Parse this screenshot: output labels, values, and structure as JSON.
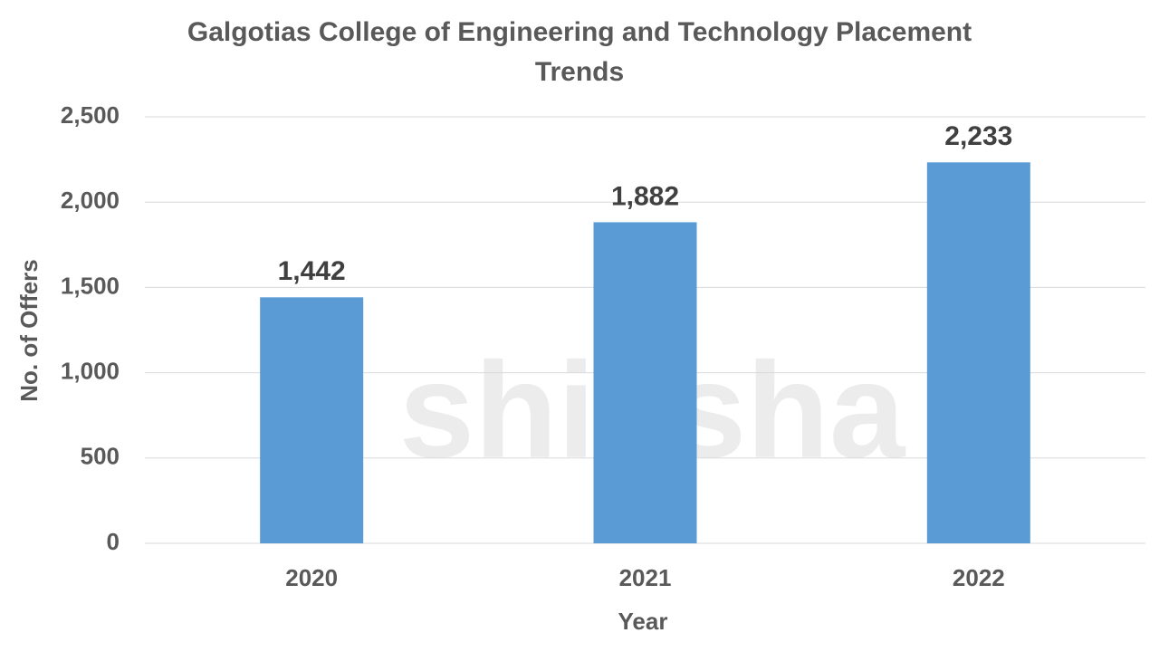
{
  "chart_data": {
    "type": "bar",
    "title": "Galgotias College of Engineering and Technology Placement Trends",
    "watermark": "shiksha",
    "x_label": "Year",
    "y_label": "No. of Offers",
    "categories": [
      "2020",
      "2021",
      "2022"
    ],
    "values": [
      1442,
      1882,
      2233
    ],
    "value_labels": [
      "1,442",
      "1,882",
      "2,233"
    ],
    "color": "#5b9bd5",
    "ylim": [
      0,
      2500
    ],
    "yticks": [
      0,
      500,
      {
        "value": 1000,
        "label": "1,000"
      },
      {
        "value": 1500,
        "label": "1,500"
      },
      {
        "value": 2000,
        "label": "2,000"
      },
      {
        "value": 2500,
        "label": "2,500"
      }
    ],
    "grid": true
  }
}
